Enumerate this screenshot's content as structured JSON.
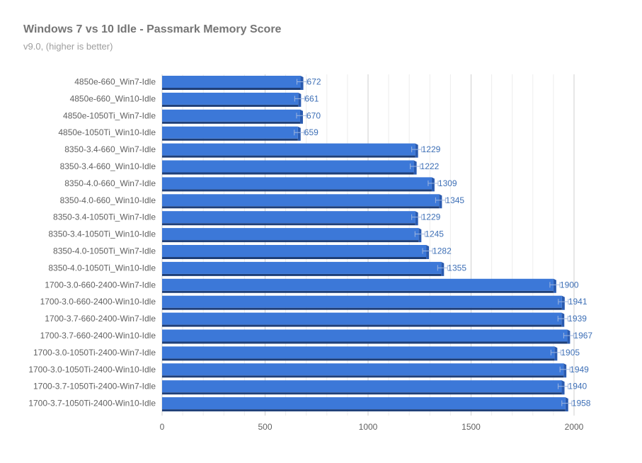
{
  "chart_data": {
    "type": "bar",
    "orientation": "horizontal",
    "title": "Windows 7 vs 10 Idle - Passmark Memory Score",
    "subtitle": "v9.0, (higher is better)",
    "xlabel": "",
    "ylabel": "",
    "xlim": [
      0,
      2000
    ],
    "x_ticks": [
      0,
      500,
      1000,
      1500,
      2000
    ],
    "grid": true,
    "error_bars": true,
    "bar_color": "#3c78d8",
    "bar_shadow_color": "#1f3f78",
    "label_color": "#3d6fb6",
    "categories": [
      "4850e-660_Win7-Idle",
      "4850e-660_Win10-Idle",
      "4850e-1050Ti_Win7-Idle",
      "4850e-1050Ti_Win10-Idle",
      "8350-3.4-660_Win7-Idle",
      "8350-3.4-660_Win10-Idle",
      "8350-4.0-660_Win7-Idle",
      "8350-4.0-660_Win10-Idle",
      "8350-3.4-1050Ti_Win7-Idle",
      "8350-3.4-1050Ti_Win10-Idle",
      "8350-4.0-1050Ti_Win7-Idle",
      "8350-4.0-1050Ti_Win10-Idle",
      "1700-3.0-660-2400-Win7-Idle",
      "1700-3.0-660-2400-Win10-Idle",
      "1700-3.7-660-2400-Win7-Idle",
      "1700-3.7-660-2400-Win10-Idle",
      "1700-3.0-1050Ti-2400-Win7-Idle",
      "1700-3.0-1050Ti-2400-Win10-Idle",
      "1700-3.7-1050Ti-2400-Win7-Idle",
      "1700-3.7-1050Ti-2400-Win10-Idle"
    ],
    "values": [
      672,
      661,
      670,
      659,
      1229,
      1222,
      1309,
      1345,
      1229,
      1245,
      1282,
      1355,
      1900,
      1941,
      1939,
      1967,
      1905,
      1949,
      1940,
      1958
    ]
  }
}
